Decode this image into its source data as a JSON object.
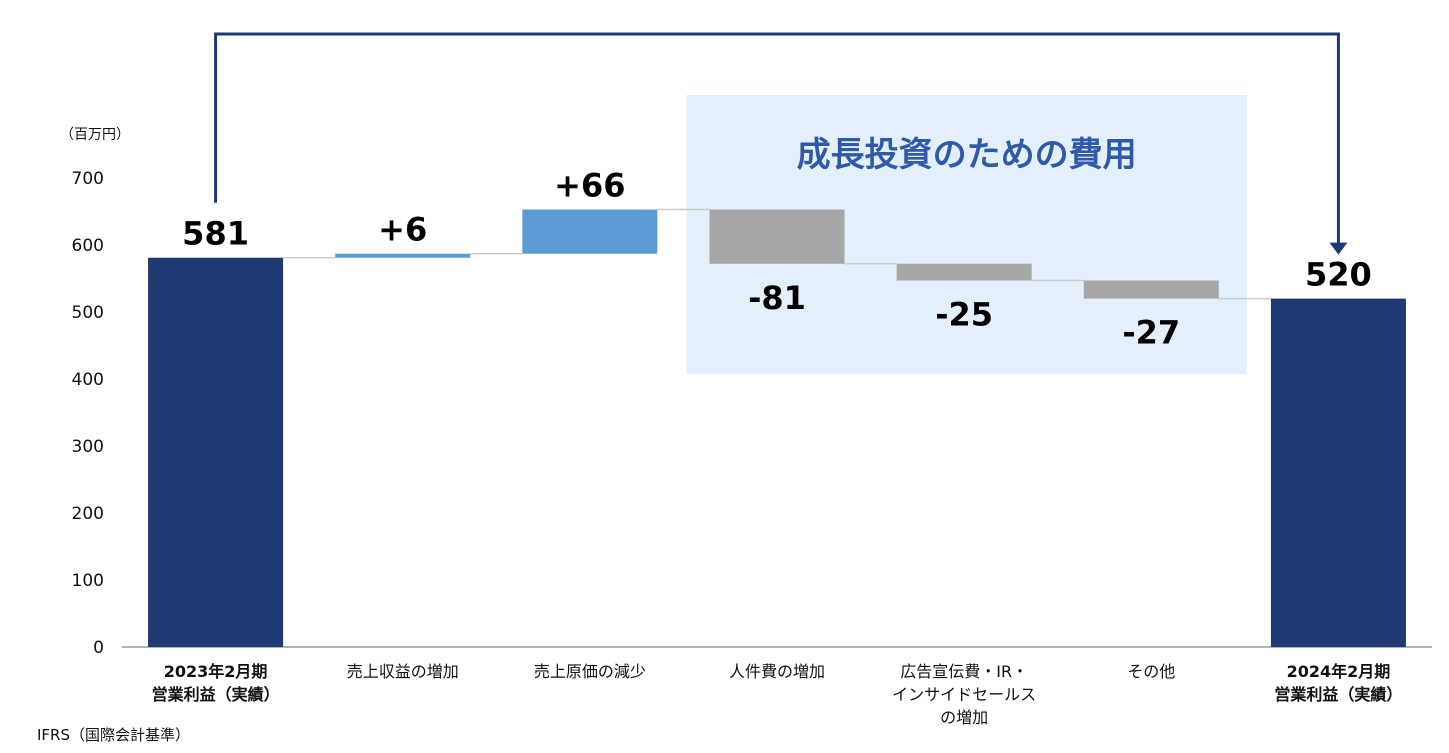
{
  "chart_data": {
    "type": "waterfall",
    "unit_label": "（百万円）",
    "ylim": [
      0,
      700
    ],
    "y_ticks": [
      "0",
      "100",
      "200",
      "300",
      "400",
      "500",
      "600",
      "700"
    ],
    "categories": [
      [
        "2023年2月期",
        "営業利益（実績）"
      ],
      [
        "売上収益の増加"
      ],
      [
        "売上原価の減少"
      ],
      [
        "人件費の増加"
      ],
      [
        "広告宣伝費・IR・",
        "インサイドセールス",
        "の増加"
      ],
      [
        "その他"
      ],
      [
        "2024年2月期",
        "営業利益（実績）"
      ]
    ],
    "steps": [
      {
        "kind": "total",
        "value": 581,
        "label": "581"
      },
      {
        "kind": "delta",
        "value": 6,
        "label": "+6"
      },
      {
        "kind": "delta",
        "value": 66,
        "label": "+66"
      },
      {
        "kind": "delta",
        "value": -81,
        "label": "-81"
      },
      {
        "kind": "delta",
        "value": -25,
        "label": "-25"
      },
      {
        "kind": "delta",
        "value": -27,
        "label": "-27"
      },
      {
        "kind": "total",
        "value": 520,
        "label": "520"
      }
    ],
    "highlight": {
      "title": "成長投資のための費用",
      "from_index": 3,
      "to_index": 5
    },
    "colors": {
      "total": "#1f3a73",
      "increase": "#5b9bd5",
      "decrease": "#a6a6a6",
      "highlight_bg": "#e3effb",
      "connector": "#cccccc",
      "arrow": "#1f3a73"
    },
    "grid": false
  },
  "footnote": "IFRS（国際会計基準）"
}
